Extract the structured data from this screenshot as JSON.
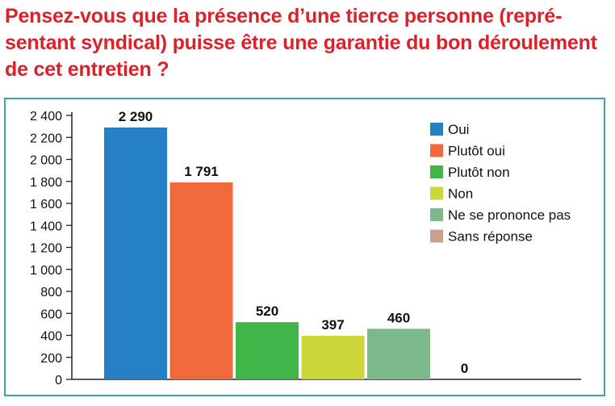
{
  "question": {
    "line1": "Pensez-vous que la présence d’une tierce personne (repré-",
    "line2": "sentant syndical) puisse être une garantie du bon déroulement",
    "line3": "de cet entretien ?"
  },
  "chart_data": {
    "type": "bar",
    "categories": [
      "Oui",
      "Plutôt oui",
      "Plutôt non",
      "Non",
      "Ne se prononce pas",
      "Sans réponse"
    ],
    "values": [
      2290,
      1791,
      520,
      397,
      460,
      0
    ],
    "value_labels": [
      "2 290",
      "1 791",
      "520",
      "397",
      "460",
      "0"
    ],
    "colors": [
      "#2580c6",
      "#f0693a",
      "#3fb54a",
      "#cdd63a",
      "#7cb98a",
      "#c9a08c"
    ],
    "ylim": [
      0,
      2400
    ],
    "yticks": [
      0,
      200,
      400,
      600,
      800,
      1000,
      1200,
      1400,
      1600,
      1800,
      2000,
      2200,
      2400
    ],
    "ytick_labels": [
      "0",
      "200",
      "400",
      "600",
      "800",
      "1 000",
      "1 200",
      "1 400",
      "1 600",
      "1 800",
      "2 000",
      "2 200",
      "2 400"
    ],
    "grid": false,
    "legend_position": "top-right",
    "title": "",
    "xlabel": "",
    "ylabel": ""
  }
}
